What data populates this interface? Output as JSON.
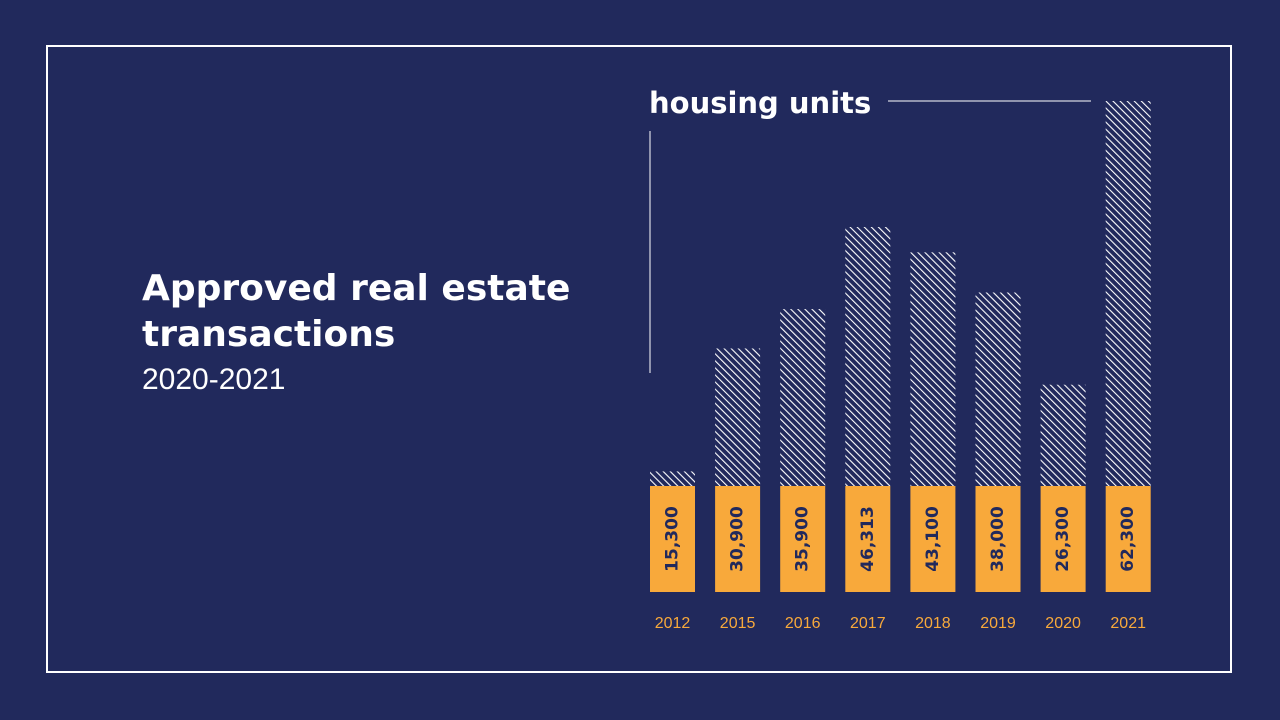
{
  "slide": {
    "title": "Approved real estate transactions",
    "subtitle": "2020-2021",
    "unit_label": "housing units"
  },
  "colors": {
    "background": "#21295c",
    "accent": "#f8a93b",
    "frame": "#ffffff",
    "hatch": "#ffffff"
  },
  "chart_data": {
    "type": "bar",
    "categories": [
      "2012",
      "2015",
      "2016",
      "2017",
      "2018",
      "2019",
      "2020",
      "2021"
    ],
    "values": [
      15300,
      30900,
      35900,
      46313,
      43100,
      38000,
      26300,
      62300
    ],
    "value_labels": [
      "15,300",
      "30,900",
      "35,900",
      "46,313",
      "43,100",
      "38,000",
      "26,300",
      "62,300"
    ],
    "ylabel": "housing units",
    "ylim": [
      0,
      62300
    ],
    "grid": false,
    "legend": "none"
  }
}
